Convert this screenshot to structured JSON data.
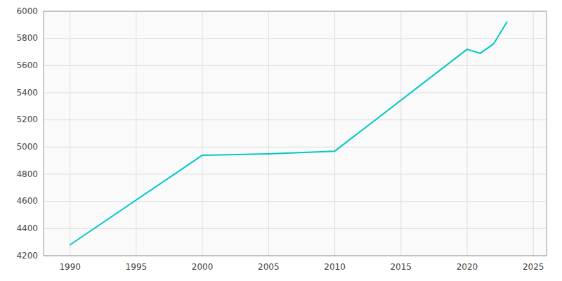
{
  "chart_data": {
    "type": "line",
    "x": [
      1990,
      2000,
      2005,
      2010,
      2020,
      2021,
      2022,
      2023
    ],
    "values": [
      4280,
      4940,
      4950,
      4970,
      5720,
      5690,
      5760,
      5920
    ],
    "color": "#00C8C8",
    "xlim": [
      1988,
      2026
    ],
    "ylim": [
      4200,
      6000
    ],
    "xticks": [
      1990,
      1995,
      2000,
      2005,
      2010,
      2015,
      2020,
      2025
    ],
    "yticks": [
      4200,
      4400,
      4600,
      4800,
      5000,
      5200,
      5400,
      5600,
      5800,
      6000
    ],
    "grid": true
  }
}
